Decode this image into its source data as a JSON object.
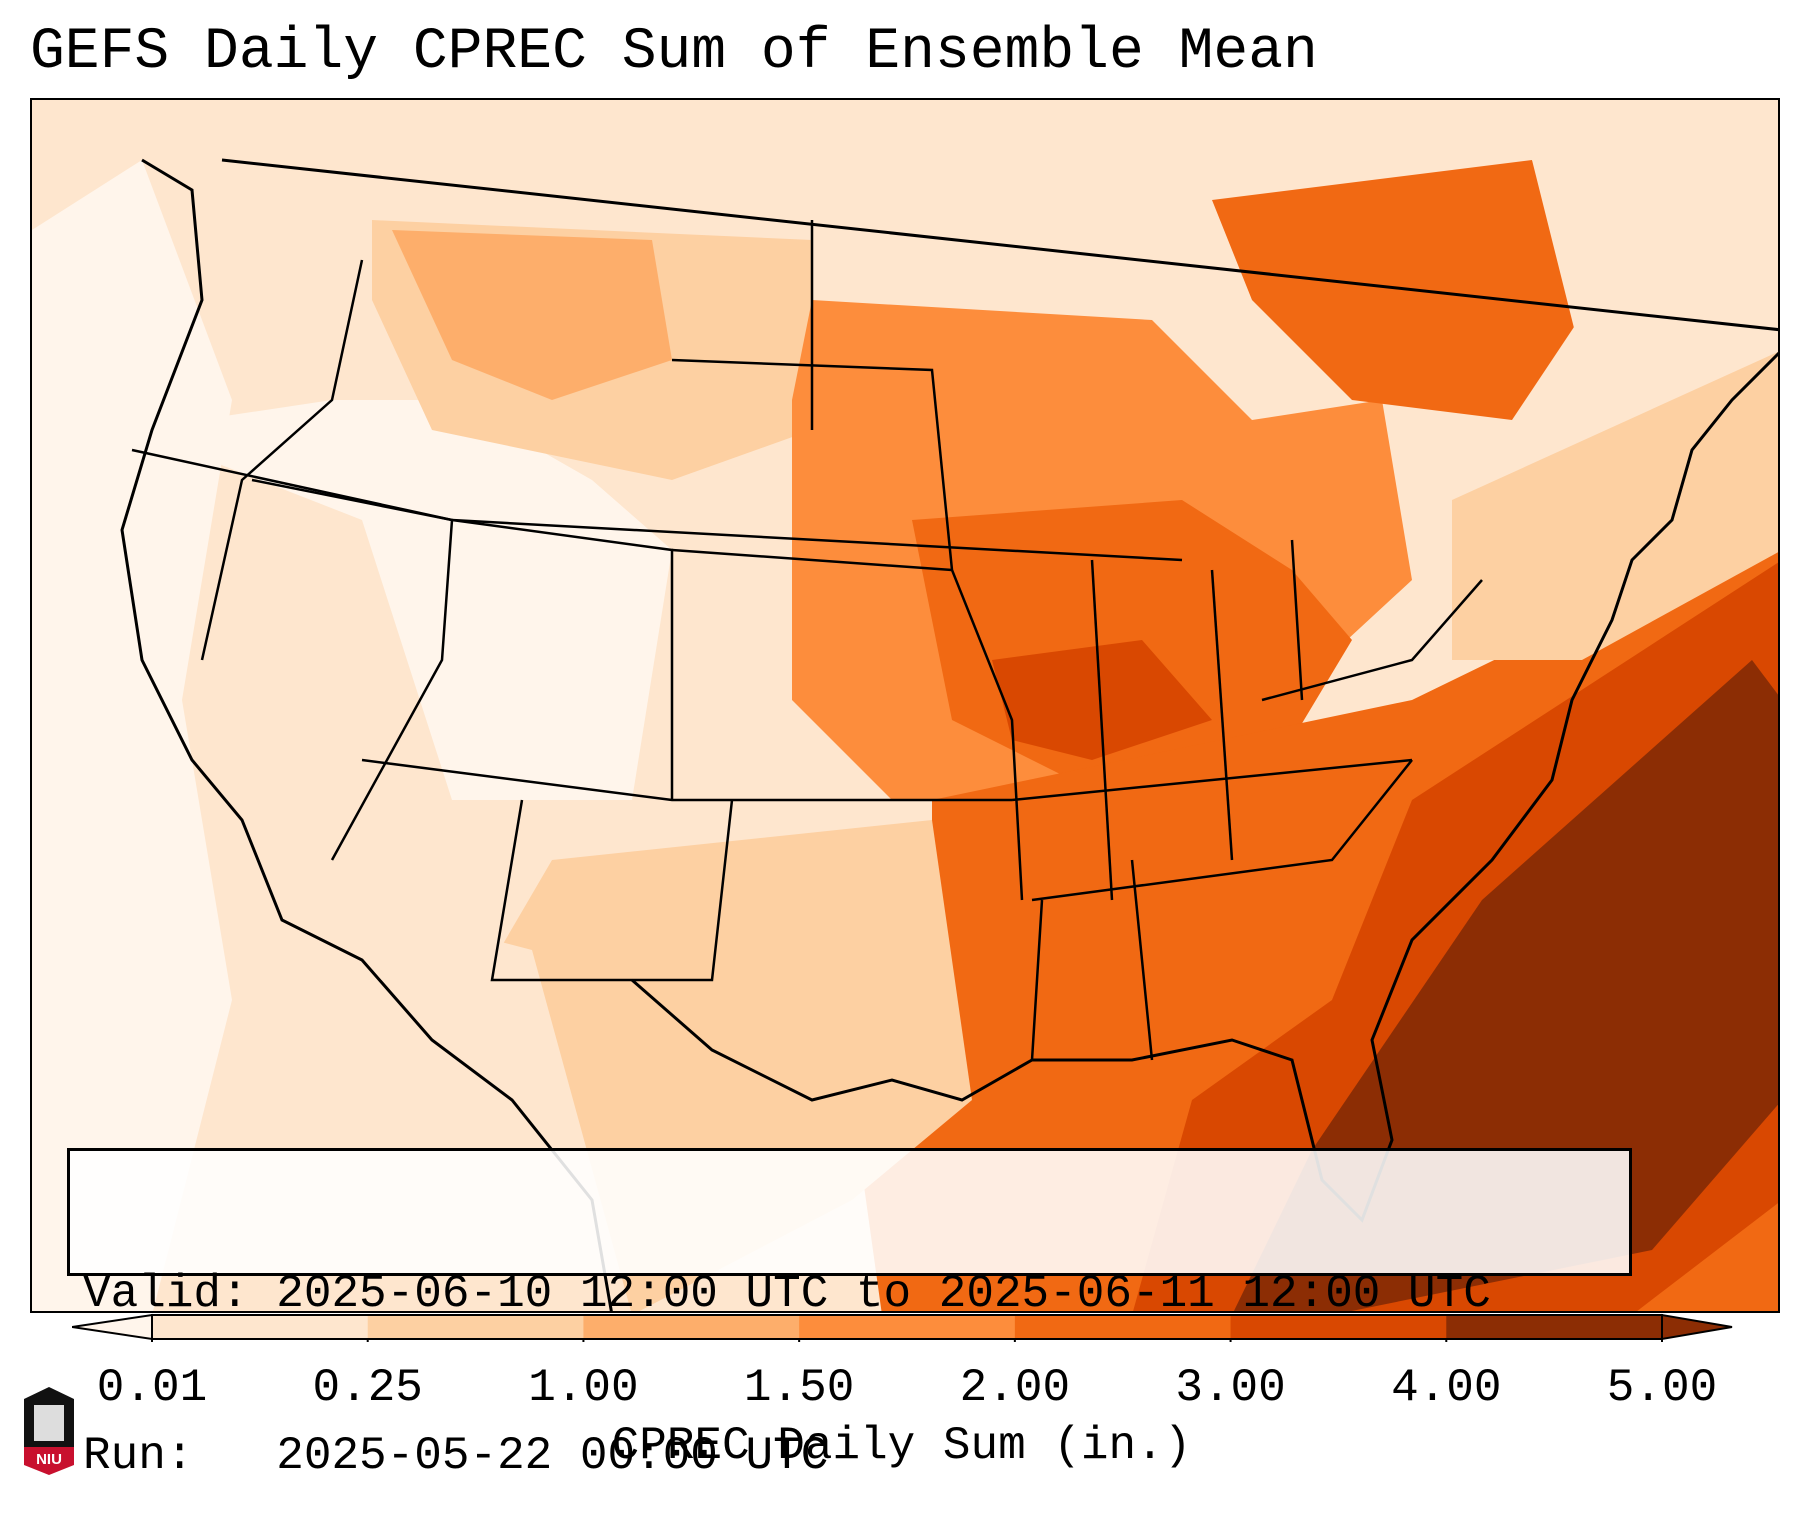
{
  "title": "GEFS Daily CPREC Sum of Ensemble Mean",
  "info": {
    "valid": "Valid: 2025-06-10 12:00 UTC to 2025-06-11 12:00 UTC",
    "run": "Run:   2025-05-22 00:00 UTC"
  },
  "colorbar": {
    "label": "CPREC Daily Sum (in.)",
    "ticks": [
      "0.01",
      "0.25",
      "1.00",
      "1.50",
      "2.00",
      "3.00",
      "4.00",
      "5.00"
    ],
    "colors": [
      "#fff5eb",
      "#fee6ce",
      "#fdd0a2",
      "#fdae6b",
      "#fd8d3c",
      "#f16913",
      "#d94801",
      "#8c2d04"
    ]
  },
  "logo_text": "NIU"
}
